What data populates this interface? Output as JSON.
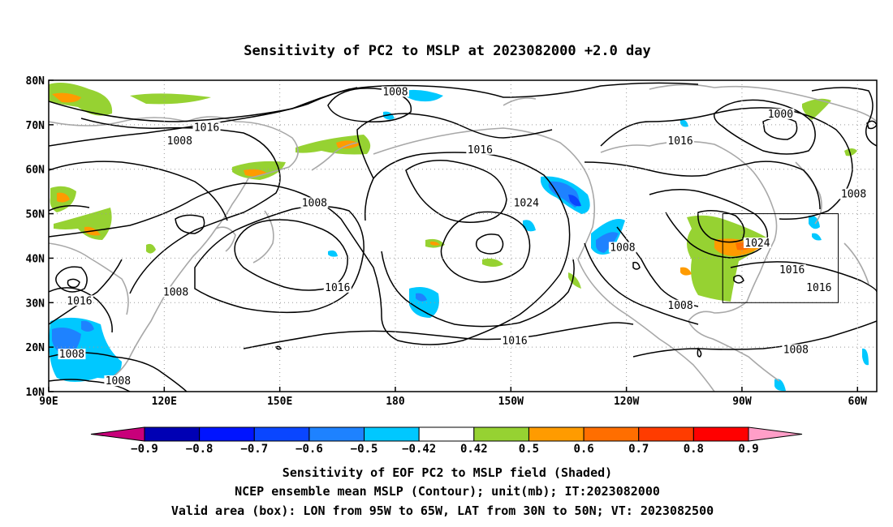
{
  "title": "Sensitivity of PC2 to MSLP at 2023082000 +2.0 day",
  "map": {
    "lon_range": [
      90,
      305
    ],
    "lat_range": [
      10,
      80
    ],
    "lon_ticks": [
      {
        "value": 90,
        "label": "90E"
      },
      {
        "value": 120,
        "label": "120E"
      },
      {
        "value": 150,
        "label": "150E"
      },
      {
        "value": 180,
        "label": "180"
      },
      {
        "value": 210,
        "label": "150W"
      },
      {
        "value": 240,
        "label": "120W"
      },
      {
        "value": 270,
        "label": "90W"
      },
      {
        "value": 300,
        "label": "60W"
      }
    ],
    "lat_ticks": [
      {
        "value": 10,
        "label": "10N"
      },
      {
        "value": 20,
        "label": "20N"
      },
      {
        "value": 30,
        "label": "30N"
      },
      {
        "value": 40,
        "label": "40N"
      },
      {
        "value": 50,
        "label": "50N"
      },
      {
        "value": 60,
        "label": "60N"
      },
      {
        "value": 70,
        "label": "70N"
      },
      {
        "value": 80,
        "label": "80N"
      }
    ],
    "grid": true,
    "valid_box": {
      "lon_min": 265,
      "lon_max": 295,
      "lat_min": 30,
      "lat_max": 50
    }
  },
  "contour_labels": [
    {
      "text": "1008",
      "lon": 180,
      "lat": 77
    },
    {
      "text": "1016",
      "lon": 131,
      "lat": 69
    },
    {
      "text": "1008",
      "lon": 124,
      "lat": 66
    },
    {
      "text": "1016",
      "lon": 202,
      "lat": 64
    },
    {
      "text": "1016",
      "lon": 254,
      "lat": 66
    },
    {
      "text": "1000",
      "lon": 280,
      "lat": 72
    },
    {
      "text": "1008",
      "lon": 159,
      "lat": 52
    },
    {
      "text": "1024",
      "lon": 214,
      "lat": 52
    },
    {
      "text": "1008",
      "lon": 239,
      "lat": 42
    },
    {
      "text": "1024",
      "lon": 274,
      "lat": 43
    },
    {
      "text": "1016",
      "lon": 283,
      "lat": 37
    },
    {
      "text": "1008",
      "lon": 299,
      "lat": 54
    },
    {
      "text": "1016",
      "lon": 165,
      "lat": 33
    },
    {
      "text": "1008",
      "lon": 123,
      "lat": 32
    },
    {
      "text": "1016",
      "lon": 98,
      "lat": 30
    },
    {
      "text": "1008",
      "lon": 254,
      "lat": 29
    },
    {
      "text": "1016",
      "lon": 290,
      "lat": 33
    },
    {
      "text": "1016",
      "lon": 211,
      "lat": 21
    },
    {
      "text": "1008",
      "lon": 96,
      "lat": 18
    },
    {
      "text": "1008",
      "lon": 108,
      "lat": 12
    },
    {
      "text": "1008",
      "lon": 284,
      "lat": 19
    }
  ],
  "colorbar": {
    "colors": [
      "#c8007a",
      "#0000b4",
      "#0014ff",
      "#0a46ff",
      "#1e82ff",
      "#00c8ff",
      "#ffffff",
      "#96d232",
      "#ff9b00",
      "#ff6e00",
      "#ff3c00",
      "#ff0000",
      "#ff9ec8"
    ],
    "labels": [
      "−0.9",
      "−0.8",
      "−0.7",
      "−0.6",
      "−0.5",
      "−0.42",
      "0.42",
      "0.5",
      "0.6",
      "0.7",
      "0.8",
      "0.9"
    ]
  },
  "footer": [
    "Sensitivity of EOF PC2 to MSLP field (Shaded)",
    "NCEP ensemble mean MSLP (Contour); unit(mb); IT:2023082000",
    "Valid area (box): LON from 95W to 65W, LAT from 30N to 50N; VT: 2023082500"
  ]
}
